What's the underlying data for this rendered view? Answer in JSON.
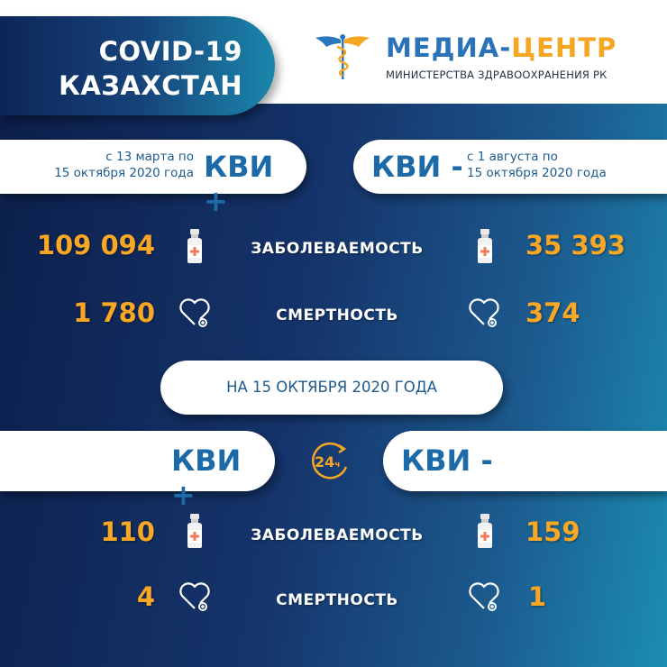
{
  "header": {
    "title_line1": "COVID-19",
    "title_line2": "КАЗАХСТАН"
  },
  "logo": {
    "name_part1": "МЕДИА-",
    "name_part2": "ЦЕНТР",
    "subtitle": "МИНИСТЕРСТВА ЗДРАВООХРАНЕНИЯ РК",
    "icon": "caduceus-icon"
  },
  "colors": {
    "orange": "#f9a825",
    "blue": "#1d6aa8",
    "navy": "#0c1f4b",
    "teal": "#1b8db3"
  },
  "cumulative": {
    "positive": {
      "label": "КВИ +",
      "period_line1": "с 13 марта по",
      "period_line2": "15 октября 2020 года",
      "cases": "109 094",
      "deaths": "1 780"
    },
    "negative": {
      "label": "КВИ -",
      "period_line1": "с 1 августа  по",
      "period_line2": "15 октября 2020 года",
      "cases": "35 393",
      "deaths": "374"
    }
  },
  "labels": {
    "cases": "ЗАБОЛЕВАЕМОСТЬ",
    "deaths": "СМЕРТНОСТЬ"
  },
  "daily": {
    "date_label": "НА 15 ОКТЯБРЯ  2020 ГОДА",
    "icon_text": "24",
    "icon_suffix": "ч",
    "positive": {
      "label": "КВИ +",
      "cases": "110",
      "deaths": "4"
    },
    "negative": {
      "label": "КВИ -",
      "cases": "159",
      "deaths": "1"
    }
  }
}
